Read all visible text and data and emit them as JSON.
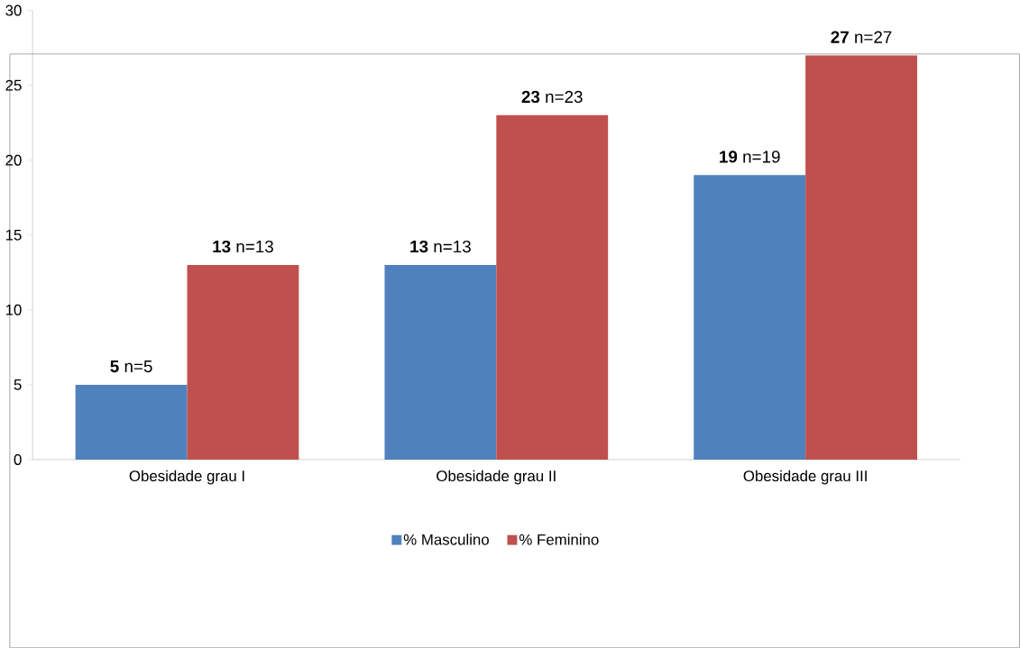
{
  "chart_data": {
    "type": "bar",
    "categories": [
      "Obesidade grau I",
      "Obesidade grau II",
      "Obesidade grau III"
    ],
    "series": [
      {
        "name": "% Masculino",
        "color": "#4f81bd",
        "values": [
          5,
          13,
          19
        ],
        "value_labels": [
          "**5** n=5",
          "**13** n=13",
          "**19** n=19"
        ]
      },
      {
        "name": "% Feminino",
        "color": "#c0504d",
        "values": [
          13,
          23,
          27
        ],
        "value_labels": [
          "**13** n=13",
          "**23** n=23",
          "**27** n=27"
        ]
      }
    ],
    "ylim": [
      0,
      30
    ],
    "yticks": [
      0,
      5,
      10,
      15,
      20,
      25,
      30
    ],
    "legend": "bottom"
  }
}
